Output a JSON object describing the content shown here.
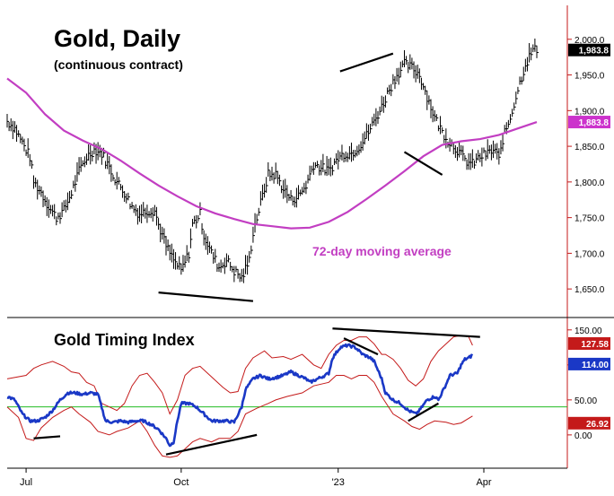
{
  "chart_data": [
    {
      "type": "ohlc-bar",
      "title": "Gold, Daily",
      "subtitle": "(continuous contract)",
      "annotation": "72-day moving average",
      "yticks": [
        "2,000.0",
        "1,950.0",
        "1,900.0",
        "1,850.0",
        "1,800.0",
        "1,750.0",
        "1,700.0",
        "1,650.0"
      ],
      "ytick_values": [
        2000,
        1950,
        1900,
        1850,
        1800,
        1750,
        1700,
        1650
      ],
      "ylim": [
        1615,
        2045
      ],
      "last_price_label": "1,983.8",
      "ma_label": "1,883.8",
      "close_path": [
        [
          0,
          1885
        ],
        [
          4,
          1875
        ],
        [
          8,
          1855
        ],
        [
          12,
          1835
        ],
        [
          14,
          1800
        ],
        [
          18,
          1785
        ],
        [
          22,
          1765
        ],
        [
          26,
          1750
        ],
        [
          30,
          1760
        ],
        [
          34,
          1785
        ],
        [
          38,
          1815
        ],
        [
          42,
          1835
        ],
        [
          46,
          1845
        ],
        [
          50,
          1840
        ],
        [
          54,
          1820
        ],
        [
          58,
          1800
        ],
        [
          62,
          1785
        ],
        [
          66,
          1765
        ],
        [
          70,
          1755
        ],
        [
          74,
          1760
        ],
        [
          78,
          1760
        ],
        [
          80,
          1740
        ],
        [
          84,
          1710
        ],
        [
          88,
          1690
        ],
        [
          92,
          1675
        ],
        [
          96,
          1700
        ],
        [
          98,
          1740
        ],
        [
          102,
          1755
        ],
        [
          104,
          1725
        ],
        [
          108,
          1700
        ],
        [
          112,
          1680
        ],
        [
          116,
          1690
        ],
        [
          120,
          1675
        ],
        [
          124,
          1665
        ],
        [
          128,
          1690
        ],
        [
          130,
          1730
        ],
        [
          134,
          1770
        ],
        [
          138,
          1810
        ],
        [
          142,
          1810
        ],
        [
          146,
          1790
        ],
        [
          150,
          1775
        ],
        [
          154,
          1780
        ],
        [
          158,
          1795
        ],
        [
          162,
          1825
        ],
        [
          166,
          1820
        ],
        [
          170,
          1815
        ],
        [
          174,
          1830
        ],
        [
          178,
          1840
        ],
        [
          182,
          1840
        ],
        [
          186,
          1850
        ],
        [
          190,
          1865
        ],
        [
          194,
          1885
        ],
        [
          198,
          1905
        ],
        [
          202,
          1930
        ],
        [
          206,
          1950
        ],
        [
          210,
          1965
        ],
        [
          214,
          1960
        ],
        [
          218,
          1950
        ],
        [
          222,
          1920
        ],
        [
          226,
          1890
        ],
        [
          230,
          1870
        ],
        [
          234,
          1855
        ],
        [
          238,
          1845
        ],
        [
          242,
          1830
        ],
        [
          246,
          1825
        ],
        [
          250,
          1835
        ],
        [
          254,
          1840
        ],
        [
          258,
          1845
        ],
        [
          260,
          1830
        ],
        [
          262,
          1860
        ],
        [
          266,
          1890
        ],
        [
          270,
          1930
        ],
        [
          274,
          1965
        ],
        [
          278,
          1985
        ],
        [
          280,
          1985
        ]
      ],
      "ma_path": [
        [
          0,
          1945
        ],
        [
          10,
          1925
        ],
        [
          20,
          1895
        ],
        [
          30,
          1872
        ],
        [
          40,
          1858
        ],
        [
          50,
          1846
        ],
        [
          60,
          1830
        ],
        [
          70,
          1812
        ],
        [
          80,
          1795
        ],
        [
          90,
          1780
        ],
        [
          100,
          1766
        ],
        [
          110,
          1756
        ],
        [
          120,
          1748
        ],
        [
          130,
          1741
        ],
        [
          140,
          1738
        ],
        [
          150,
          1735
        ],
        [
          160,
          1736
        ],
        [
          170,
          1744
        ],
        [
          180,
          1758
        ],
        [
          190,
          1776
        ],
        [
          200,
          1795
        ],
        [
          210,
          1815
        ],
        [
          220,
          1836
        ],
        [
          230,
          1852
        ],
        [
          240,
          1857
        ],
        [
          250,
          1860
        ],
        [
          260,
          1866
        ],
        [
          270,
          1875
        ],
        [
          280,
          1884
        ]
      ],
      "trendlines": [
        {
          "from": [
            80,
            1645
          ],
          "to": [
            130,
            1633
          ]
        },
        {
          "from": [
            176,
            1955
          ],
          "to": [
            204,
            1980
          ]
        },
        {
          "from": [
            210,
            1842
          ],
          "to": [
            230,
            1810
          ]
        }
      ]
    },
    {
      "type": "line",
      "title": "Gold Timing Index",
      "yticks": [
        "150.00",
        "100.00",
        "50.00",
        "0.00"
      ],
      "ytick_values": [
        150,
        100,
        50,
        0
      ],
      "ylim": [
        -45,
        160
      ],
      "label_upper_band": "127.58",
      "label_index": "114.00",
      "label_lower_band": "26.92",
      "reference_level": 40,
      "index_path": [
        [
          0,
          55
        ],
        [
          4,
          50
        ],
        [
          8,
          30
        ],
        [
          12,
          20
        ],
        [
          16,
          20
        ],
        [
          20,
          25
        ],
        [
          24,
          35
        ],
        [
          28,
          50
        ],
        [
          32,
          60
        ],
        [
          36,
          60
        ],
        [
          40,
          58
        ],
        [
          44,
          60
        ],
        [
          48,
          58
        ],
        [
          52,
          20
        ],
        [
          56,
          18
        ],
        [
          60,
          20
        ],
        [
          64,
          18
        ],
        [
          68,
          20
        ],
        [
          72,
          20
        ],
        [
          76,
          15
        ],
        [
          80,
          8
        ],
        [
          84,
          -5
        ],
        [
          86,
          -15
        ],
        [
          88,
          -10
        ],
        [
          90,
          20
        ],
        [
          92,
          45
        ],
        [
          96,
          45
        ],
        [
          100,
          40
        ],
        [
          104,
          30
        ],
        [
          108,
          20
        ],
        [
          112,
          20
        ],
        [
          116,
          20
        ],
        [
          120,
          18
        ],
        [
          124,
          40
        ],
        [
          126,
          65
        ],
        [
          130,
          80
        ],
        [
          134,
          85
        ],
        [
          138,
          80
        ],
        [
          142,
          82
        ],
        [
          146,
          85
        ],
        [
          150,
          90
        ],
        [
          154,
          85
        ],
        [
          158,
          80
        ],
        [
          160,
          75
        ],
        [
          164,
          80
        ],
        [
          168,
          85
        ],
        [
          170,
          88
        ],
        [
          172,
          110
        ],
        [
          176,
          125
        ],
        [
          180,
          128
        ],
        [
          184,
          125
        ],
        [
          188,
          115
        ],
        [
          192,
          110
        ],
        [
          194,
          105
        ],
        [
          198,
          80
        ],
        [
          200,
          60
        ],
        [
          204,
          50
        ],
        [
          208,
          45
        ],
        [
          212,
          35
        ],
        [
          216,
          30
        ],
        [
          218,
          35
        ],
        [
          222,
          50
        ],
        [
          226,
          55
        ],
        [
          228,
          50
        ],
        [
          232,
          72
        ],
        [
          234,
          85
        ],
        [
          238,
          88
        ],
        [
          240,
          100
        ],
        [
          242,
          108
        ],
        [
          244,
          110
        ],
        [
          246,
          114
        ]
      ],
      "upper_band_path": [
        [
          0,
          80
        ],
        [
          10,
          85
        ],
        [
          14,
          95
        ],
        [
          18,
          100
        ],
        [
          24,
          105
        ],
        [
          30,
          98
        ],
        [
          34,
          90
        ],
        [
          38,
          88
        ],
        [
          42,
          75
        ],
        [
          46,
          70
        ],
        [
          50,
          45
        ],
        [
          54,
          40
        ],
        [
          58,
          35
        ],
        [
          62,
          45
        ],
        [
          66,
          70
        ],
        [
          70,
          85
        ],
        [
          74,
          88
        ],
        [
          78,
          75
        ],
        [
          82,
          60
        ],
        [
          86,
          30
        ],
        [
          90,
          50
        ],
        [
          94,
          85
        ],
        [
          98,
          95
        ],
        [
          102,
          98
        ],
        [
          106,
          88
        ],
        [
          110,
          78
        ],
        [
          114,
          68
        ],
        [
          118,
          60
        ],
        [
          122,
          62
        ],
        [
          126,
          95
        ],
        [
          130,
          110
        ],
        [
          136,
          120
        ],
        [
          140,
          110
        ],
        [
          146,
          112
        ],
        [
          150,
          108
        ],
        [
          156,
          115
        ],
        [
          162,
          100
        ],
        [
          166,
          95
        ],
        [
          170,
          115
        ],
        [
          174,
          128
        ],
        [
          178,
          135
        ],
        [
          182,
          135
        ],
        [
          186,
          140
        ],
        [
          190,
          140
        ],
        [
          194,
          130
        ],
        [
          198,
          115
        ],
        [
          200,
          115
        ],
        [
          204,
          108
        ],
        [
          208,
          95
        ],
        [
          212,
          78
        ],
        [
          216,
          70
        ],
        [
          220,
          80
        ],
        [
          224,
          105
        ],
        [
          228,
          120
        ],
        [
          232,
          130
        ],
        [
          236,
          140
        ],
        [
          240,
          142
        ],
        [
          244,
          140
        ],
        [
          246,
          128
        ]
      ],
      "lower_band_path": [
        [
          0,
          40
        ],
        [
          6,
          25
        ],
        [
          10,
          -5
        ],
        [
          14,
          -8
        ],
        [
          18,
          10
        ],
        [
          24,
          25
        ],
        [
          30,
          35
        ],
        [
          34,
          40
        ],
        [
          38,
          30
        ],
        [
          44,
          18
        ],
        [
          48,
          5
        ],
        [
          54,
          0
        ],
        [
          58,
          5
        ],
        [
          64,
          10
        ],
        [
          70,
          20
        ],
        [
          74,
          5
        ],
        [
          78,
          -15
        ],
        [
          82,
          -30
        ],
        [
          86,
          -32
        ],
        [
          90,
          -30
        ],
        [
          94,
          -20
        ],
        [
          98,
          -10
        ],
        [
          102,
          -5
        ],
        [
          108,
          -10
        ],
        [
          112,
          -5
        ],
        [
          118,
          -5
        ],
        [
          122,
          5
        ],
        [
          126,
          30
        ],
        [
          132,
          38
        ],
        [
          138,
          45
        ],
        [
          142,
          50
        ],
        [
          148,
          55
        ],
        [
          156,
          60
        ],
        [
          162,
          70
        ],
        [
          170,
          75
        ],
        [
          174,
          85
        ],
        [
          178,
          85
        ],
        [
          182,
          80
        ],
        [
          186,
          85
        ],
        [
          190,
          85
        ],
        [
          194,
          75
        ],
        [
          198,
          55
        ],
        [
          204,
          30
        ],
        [
          210,
          20
        ],
        [
          214,
          12
        ],
        [
          218,
          8
        ],
        [
          222,
          15
        ],
        [
          226,
          20
        ],
        [
          232,
          18
        ],
        [
          236,
          15
        ],
        [
          240,
          17
        ],
        [
          246,
          27
        ]
      ],
      "trendlines": [
        {
          "from": [
            14,
            -5
          ],
          "to": [
            28,
            -2
          ]
        },
        {
          "from": [
            84,
            -28
          ],
          "to": [
            132,
            0
          ]
        },
        {
          "from": [
            172,
            152
          ],
          "to": [
            250,
            140
          ]
        },
        {
          "from": [
            178,
            138
          ],
          "to": [
            196,
            115
          ]
        },
        {
          "from": [
            212,
            20
          ],
          "to": [
            228,
            45
          ]
        }
      ]
    }
  ],
  "xaxis": {
    "ticks": [
      "Jul",
      "Oct",
      "'23",
      "Apr"
    ],
    "tick_index": [
      10,
      92,
      175,
      252
    ]
  },
  "colors": {
    "price": "#000000",
    "moving_average": "#c23ec2",
    "index_line": "#1a38c6",
    "bands": "#c41a1a",
    "reference_line": "#22bb22",
    "axis": "#c41a1a",
    "last_price_box": "#000000",
    "ma_box": "#cc33cc",
    "index_box": "#1a38c6",
    "upper_band_box": "#c41a1a",
    "lower_band_box": "#c41a1a"
  }
}
